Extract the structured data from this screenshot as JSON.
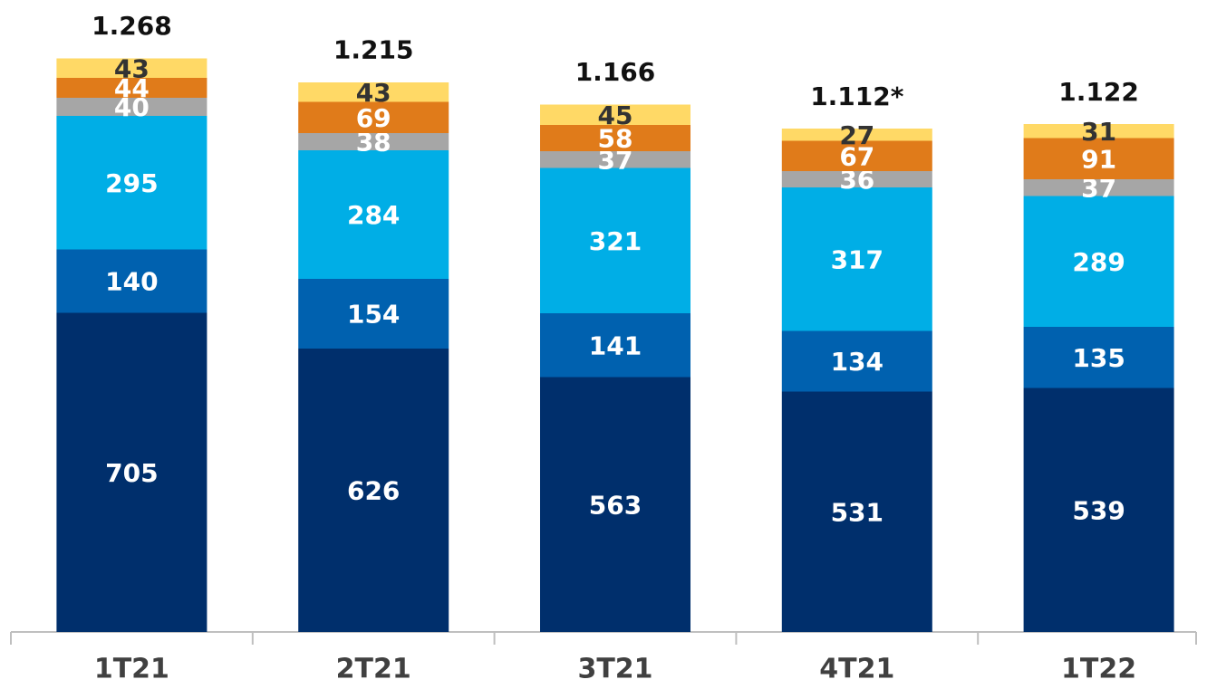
{
  "chart_data": {
    "type": "stacked_bar",
    "categories": [
      "1T21",
      "2T21",
      "3T21",
      "4T21",
      "1T22"
    ],
    "series": [
      {
        "color": "#002F6C",
        "values": [
          705,
          626,
          563,
          531,
          539
        ]
      },
      {
        "color": "#0061AF",
        "values": [
          140,
          154,
          141,
          134,
          135
        ]
      },
      {
        "color": "#00AEE6",
        "values": [
          295,
          284,
          321,
          317,
          289
        ]
      },
      {
        "color": "#A6A6A6",
        "values": [
          40,
          38,
          37,
          36,
          37
        ]
      },
      {
        "color": "#E07B1A",
        "values": [
          44,
          69,
          58,
          67,
          91
        ]
      },
      {
        "color": "#FFD966",
        "values": [
          43,
          43,
          45,
          27,
          31
        ]
      }
    ],
    "totals": {
      "values": [
        1268,
        1215,
        1166,
        1112,
        1122
      ],
      "value_labels": [
        "1.268",
        "1.215",
        "1.166",
        "1.112*",
        "1.122"
      ]
    }
  }
}
